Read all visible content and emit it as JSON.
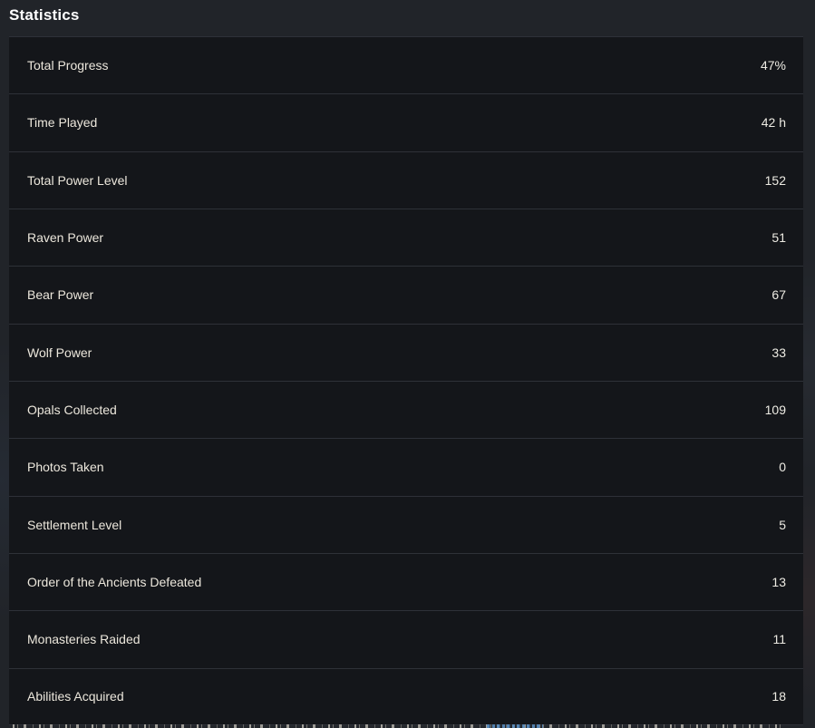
{
  "page": {
    "title": "Statistics"
  },
  "stats": {
    "rows": [
      {
        "label": "Total Progress",
        "value": "47%"
      },
      {
        "label": "Time Played",
        "value": "42 h"
      },
      {
        "label": "Total Power Level",
        "value": "152"
      },
      {
        "label": "Raven Power",
        "value": "51"
      },
      {
        "label": "Bear Power",
        "value": "67"
      },
      {
        "label": "Wolf Power",
        "value": "33"
      },
      {
        "label": "Opals Collected",
        "value": "109"
      },
      {
        "label": "Photos Taken",
        "value": "0"
      },
      {
        "label": "Settlement Level",
        "value": "5"
      },
      {
        "label": "Order of the Ancients Defeated",
        "value": "13"
      },
      {
        "label": "Monasteries Raided",
        "value": "11"
      },
      {
        "label": "Abilities Acquired",
        "value": "18"
      }
    ]
  },
  "colors": {
    "page_background": "#212429",
    "row_background": "#14161a",
    "separator": "#2e3138",
    "title_text": "#ffffff",
    "label_text": "#ece7dc",
    "value_text": "#edebe3",
    "link_fragment_blue": "#5688b9"
  }
}
